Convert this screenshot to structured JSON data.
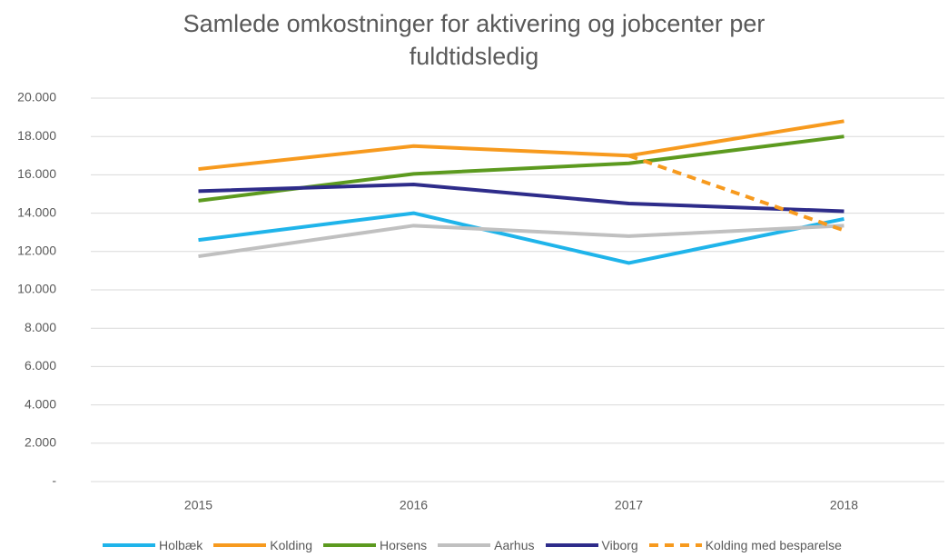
{
  "chart_data": {
    "type": "line",
    "title": "Samlede omkostninger for aktivering og jobcenter per fuldtidsledig",
    "categories": [
      "2015",
      "2016",
      "2017",
      "2018"
    ],
    "series": [
      {
        "name": "Holbæk",
        "color": "#1fb4ea",
        "values": [
          12600,
          14000,
          11400,
          13700
        ]
      },
      {
        "name": "Kolding",
        "color": "#f79a1e",
        "values": [
          16300,
          17500,
          17000,
          18800
        ]
      },
      {
        "name": "Horsens",
        "color": "#5c9a1f",
        "values": [
          14650,
          16050,
          16600,
          18000
        ]
      },
      {
        "name": "Aarhus",
        "color": "#c0c0c0",
        "values": [
          11750,
          13350,
          12800,
          13350
        ]
      },
      {
        "name": "Viborg",
        "color": "#2e2c8a",
        "values": [
          15150,
          15500,
          14500,
          14100
        ]
      },
      {
        "name": "Kolding med besparelse",
        "color": "#f79a1e",
        "style": "dashed",
        "values": [
          null,
          null,
          17000,
          13100
        ]
      }
    ],
    "ylim": [
      0,
      20000
    ],
    "yticks": [
      {
        "value": 0,
        "label": "-"
      },
      {
        "value": 2000,
        "label": "2.000"
      },
      {
        "value": 4000,
        "label": "4.000"
      },
      {
        "value": 6000,
        "label": "6.000"
      },
      {
        "value": 8000,
        "label": "8.000"
      },
      {
        "value": 10000,
        "label": "10.000"
      },
      {
        "value": 12000,
        "label": "12.000"
      },
      {
        "value": 14000,
        "label": "14.000"
      },
      {
        "value": 16000,
        "label": "16.000"
      },
      {
        "value": 18000,
        "label": "18.000"
      },
      {
        "value": 20000,
        "label": "20.000"
      }
    ],
    "grid": true
  }
}
